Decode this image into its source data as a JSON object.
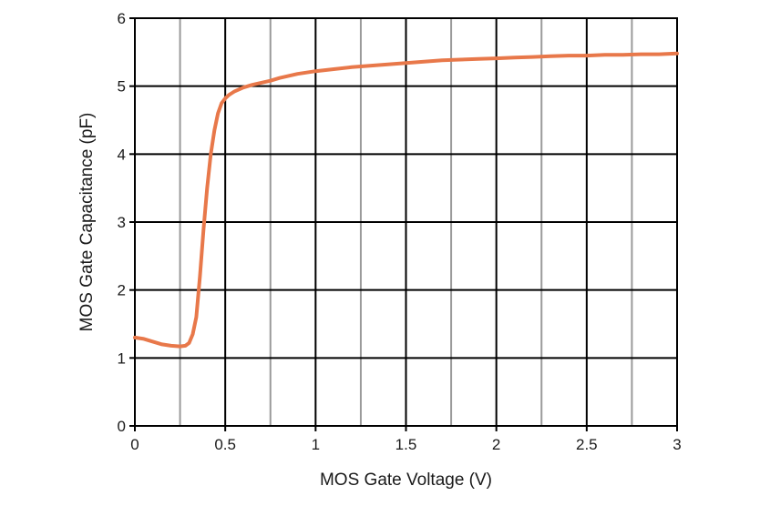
{
  "chart_data": {
    "type": "line",
    "title": "",
    "xlabel": "MOS Gate Voltage (V)",
    "ylabel": "MOS Gate Capacitance (pF)",
    "xlim": [
      0,
      3
    ],
    "ylim": [
      0,
      6
    ],
    "x_ticks": [
      0,
      0.5,
      1,
      1.5,
      2,
      2.5,
      3
    ],
    "x_tick_labels": [
      "0",
      "0.5",
      "1",
      "1.5",
      "2",
      "2.5",
      "3"
    ],
    "y_ticks": [
      0,
      1,
      2,
      3,
      4,
      5,
      6
    ],
    "y_tick_labels": [
      "0",
      "1",
      "2",
      "3",
      "4",
      "5",
      "6"
    ],
    "x_minor_grid": [
      0.25,
      0.75,
      1.25,
      1.75,
      2.25,
      2.75
    ],
    "grid": true,
    "legend": "none",
    "colors": {
      "line": "#E8784A",
      "major_grid": "#000000",
      "minor_grid": "#9a9a9a"
    },
    "series": [
      {
        "x": [
          0,
          0.05,
          0.1,
          0.15,
          0.2,
          0.25,
          0.28,
          0.3,
          0.32,
          0.34,
          0.36,
          0.38,
          0.4,
          0.42,
          0.44,
          0.46,
          0.48,
          0.5,
          0.52,
          0.55,
          0.6,
          0.65,
          0.7,
          0.75,
          0.8,
          0.9,
          1.0,
          1.1,
          1.2,
          1.3,
          1.4,
          1.5,
          1.6,
          1.7,
          1.8,
          1.9,
          2.0,
          2.1,
          2.2,
          2.3,
          2.4,
          2.5,
          2.6,
          2.7,
          2.8,
          2.9,
          3.0
        ],
        "y": [
          1.3,
          1.28,
          1.24,
          1.2,
          1.18,
          1.17,
          1.18,
          1.22,
          1.35,
          1.6,
          2.2,
          2.9,
          3.5,
          4.0,
          4.35,
          4.6,
          4.75,
          4.82,
          4.87,
          4.92,
          4.98,
          5.02,
          5.05,
          5.08,
          5.12,
          5.18,
          5.22,
          5.25,
          5.28,
          5.3,
          5.32,
          5.34,
          5.36,
          5.38,
          5.39,
          5.4,
          5.41,
          5.42,
          5.43,
          5.44,
          5.45,
          5.45,
          5.46,
          5.46,
          5.47,
          5.47,
          5.48
        ]
      }
    ]
  }
}
